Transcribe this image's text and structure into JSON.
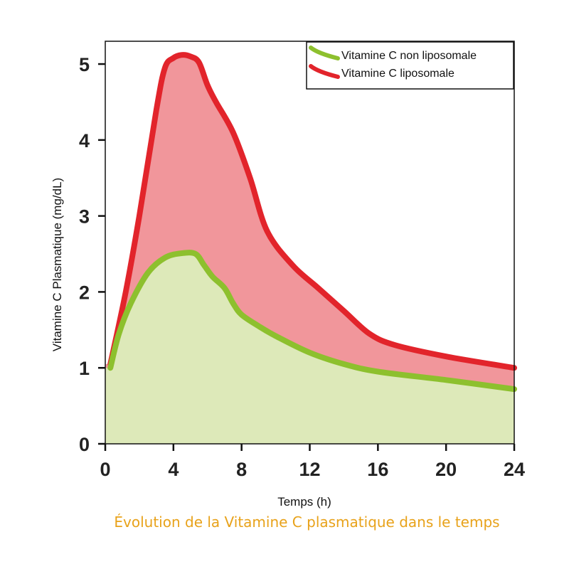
{
  "caption": "Évolution de la Vitamine C plasmatique dans le temps",
  "chart_data": {
    "type": "area",
    "xlabel": "Temps (h)",
    "ylabel": "Vitamine C Plasmatique (mg/dL)",
    "xlim": [
      0,
      24
    ],
    "ylim": [
      0,
      5.3
    ],
    "xticks": [
      0,
      4,
      8,
      12,
      16,
      20,
      24
    ],
    "yticks": [
      0,
      1,
      2,
      3,
      4,
      5
    ],
    "grid": false,
    "legend_position": "top-right",
    "series": [
      {
        "name": "Vitamine C non liposomale",
        "color": "#8DC02E",
        "fill": "#DDE9B9",
        "x": [
          0.3,
          0.8,
          1.5,
          2.5,
          3.5,
          4.5,
          5.3,
          5.8,
          6.3,
          7.0,
          7.5,
          8.0,
          9.0,
          10.0,
          12.0,
          14.0,
          16.0,
          20.0,
          24.0
        ],
        "y": [
          1.0,
          1.45,
          1.85,
          2.25,
          2.45,
          2.51,
          2.5,
          2.35,
          2.2,
          2.05,
          1.85,
          1.7,
          1.55,
          1.42,
          1.2,
          1.05,
          0.95,
          0.84,
          0.72
        ]
      },
      {
        "name": "Vitamine C liposomale",
        "color": "#E2242B",
        "fill": "#F1969B",
        "x": [
          0.3,
          1.2,
          2.0,
          3.0,
          3.5,
          4.0,
          4.5,
          5.0,
          5.5,
          6.0,
          6.5,
          7.5,
          8.5,
          9.5,
          11.0,
          12.5,
          14.0,
          15.5,
          17.0,
          20.0,
          24.0
        ],
        "y": [
          1.05,
          2.0,
          3.0,
          4.4,
          4.95,
          5.08,
          5.12,
          5.1,
          5.02,
          4.72,
          4.5,
          4.1,
          3.5,
          2.8,
          2.35,
          2.05,
          1.75,
          1.45,
          1.3,
          1.15,
          1.0
        ]
      }
    ]
  }
}
